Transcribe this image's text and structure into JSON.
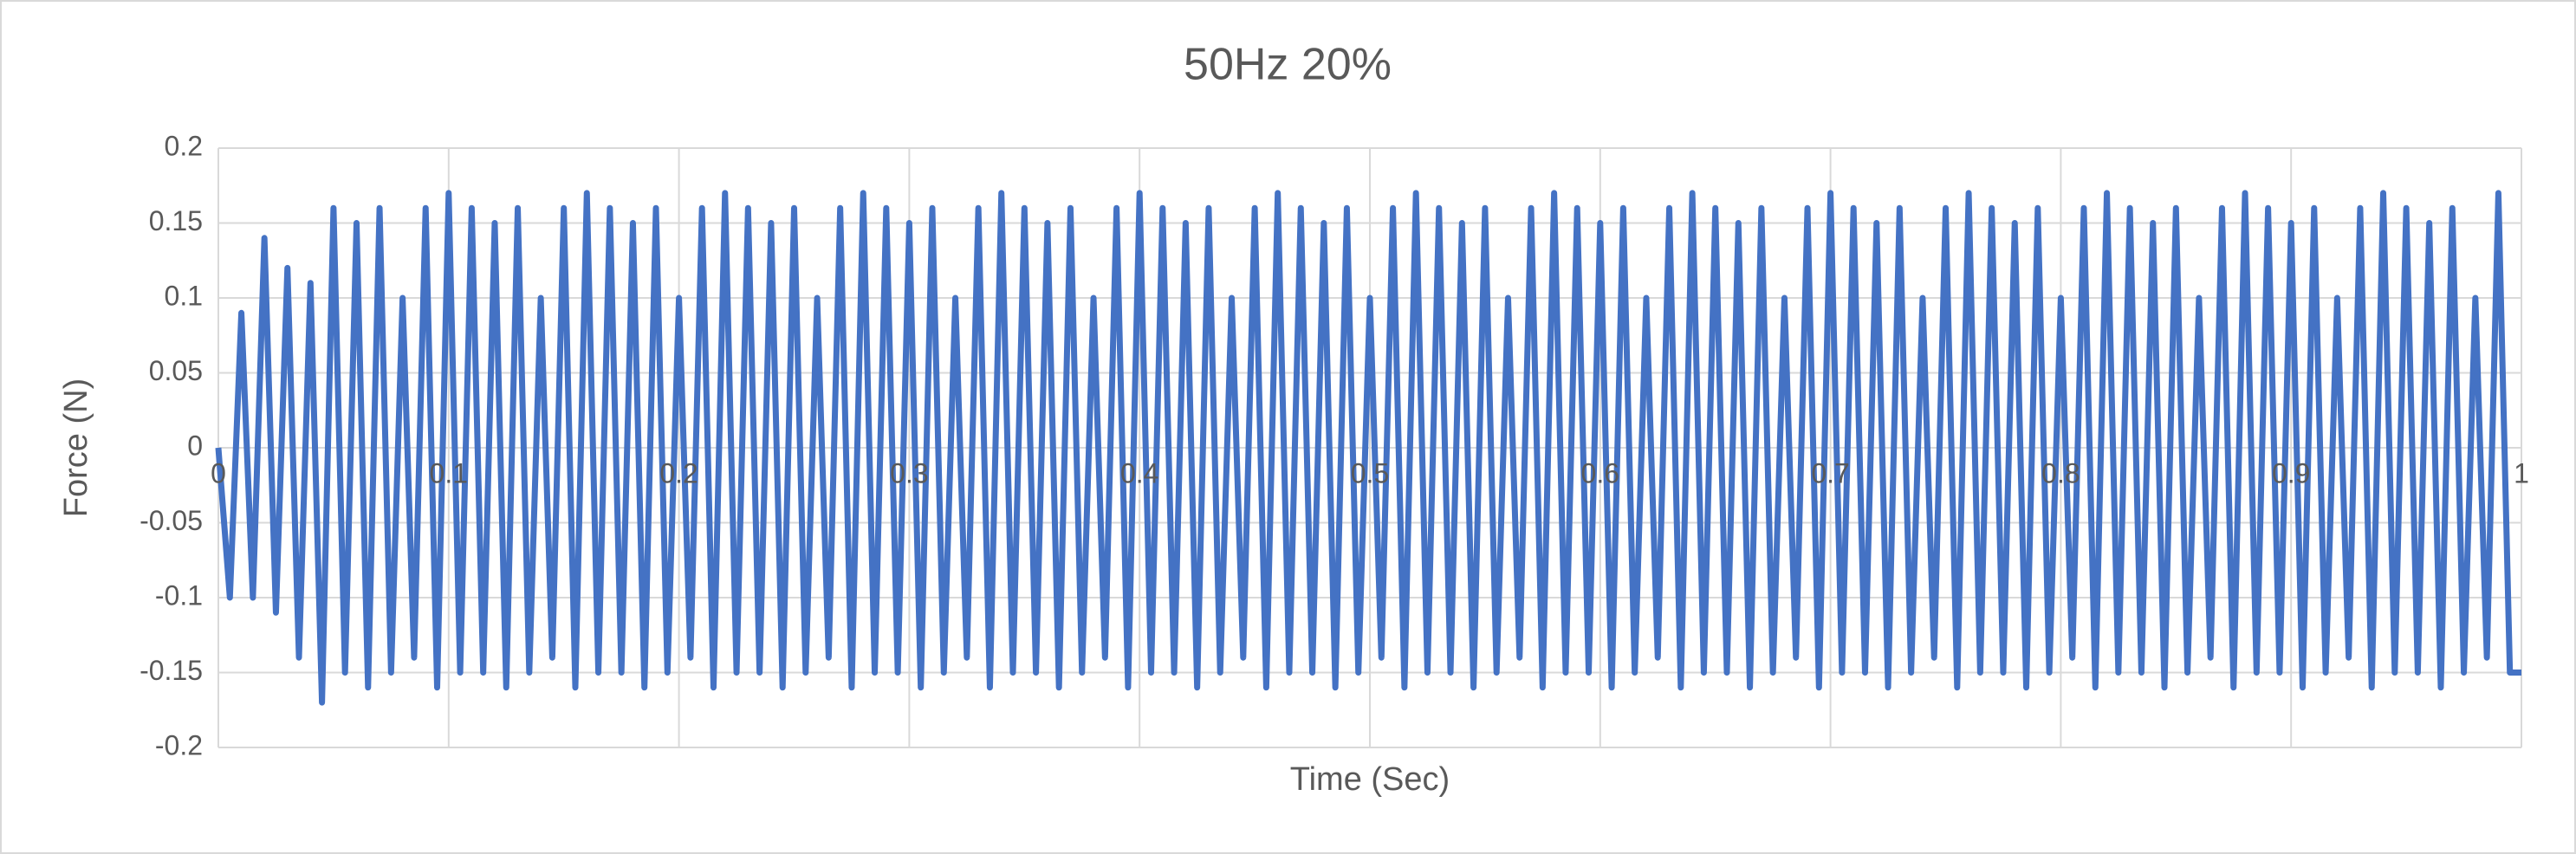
{
  "chart_data": {
    "type": "line",
    "title": "50Hz 20%",
    "x_label": "Time (Sec)",
    "y_label": "Force (N)",
    "x": [
      0,
      0.005,
      0.01,
      0.015,
      0.02,
      0.025,
      0.03,
      0.035,
      0.04,
      0.045,
      0.05,
      0.055,
      0.06,
      0.065,
      0.07,
      0.075,
      0.08,
      0.085,
      0.09,
      0.095,
      0.1,
      0.105,
      0.11,
      0.115,
      0.12,
      0.125,
      0.13,
      0.135,
      0.14,
      0.145,
      0.15,
      0.155,
      0.16,
      0.165,
      0.17,
      0.175,
      0.18,
      0.185,
      0.19,
      0.195,
      0.2,
      0.205,
      0.21,
      0.215,
      0.22,
      0.225,
      0.23,
      0.235,
      0.24,
      0.245,
      0.25,
      0.255,
      0.26,
      0.265,
      0.27,
      0.275,
      0.28,
      0.285,
      0.29,
      0.295,
      0.3,
      0.305,
      0.31,
      0.315,
      0.32,
      0.325,
      0.33,
      0.335,
      0.34,
      0.345,
      0.35,
      0.355,
      0.36,
      0.365,
      0.37,
      0.375,
      0.38,
      0.385,
      0.39,
      0.395,
      0.4,
      0.405,
      0.41,
      0.415,
      0.42,
      0.425,
      0.43,
      0.435,
      0.44,
      0.445,
      0.45,
      0.455,
      0.46,
      0.465,
      0.47,
      0.475,
      0.48,
      0.485,
      0.49,
      0.495,
      0.5,
      0.505,
      0.51,
      0.515,
      0.52,
      0.525,
      0.53,
      0.535,
      0.54,
      0.545,
      0.55,
      0.555,
      0.56,
      0.565,
      0.57,
      0.575,
      0.58,
      0.585,
      0.59,
      0.595,
      0.6,
      0.605,
      0.61,
      0.615,
      0.62,
      0.625,
      0.63,
      0.635,
      0.64,
      0.645,
      0.65,
      0.655,
      0.66,
      0.665,
      0.67,
      0.675,
      0.68,
      0.685,
      0.69,
      0.695,
      0.7,
      0.705,
      0.71,
      0.715,
      0.72,
      0.725,
      0.73,
      0.735,
      0.74,
      0.745,
      0.75,
      0.755,
      0.76,
      0.765,
      0.77,
      0.775,
      0.78,
      0.785,
      0.79,
      0.795,
      0.8,
      0.805,
      0.81,
      0.815,
      0.82,
      0.825,
      0.83,
      0.835,
      0.84,
      0.845,
      0.85,
      0.855,
      0.86,
      0.865,
      0.87,
      0.875,
      0.88,
      0.885,
      0.89,
      0.895,
      0.9,
      0.905,
      0.91,
      0.915,
      0.92,
      0.925,
      0.93,
      0.935,
      0.94,
      0.945,
      0.95,
      0.955,
      0.96,
      0.965,
      0.97,
      0.975,
      0.98,
      0.985,
      0.99,
      0.995,
      1
    ],
    "series": [
      {
        "name": "Force",
        "color": "#4472c4",
        "values": [
          0,
          -0.1,
          0.09,
          -0.1,
          0.14,
          -0.11,
          0.12,
          -0.14,
          0.11,
          -0.17,
          0.16,
          -0.15,
          0.15,
          -0.16,
          0.16,
          -0.15,
          0.1,
          -0.14,
          0.16,
          -0.16,
          0.17,
          -0.15,
          0.16,
          -0.15,
          0.15,
          -0.16,
          0.16,
          -0.15,
          0.1,
          -0.14,
          0.16,
          -0.16,
          0.17,
          -0.15,
          0.16,
          -0.15,
          0.15,
          -0.16,
          0.16,
          -0.15,
          0.1,
          -0.14,
          0.16,
          -0.16,
          0.17,
          -0.15,
          0.16,
          -0.15,
          0.15,
          -0.16,
          0.16,
          -0.15,
          0.1,
          -0.14,
          0.16,
          -0.16,
          0.17,
          -0.15,
          0.16,
          -0.15,
          0.15,
          -0.16,
          0.16,
          -0.15,
          0.1,
          -0.14,
          0.16,
          -0.16,
          0.17,
          -0.15,
          0.16,
          -0.15,
          0.15,
          -0.16,
          0.16,
          -0.15,
          0.1,
          -0.14,
          0.16,
          -0.16,
          0.17,
          -0.15,
          0.16,
          -0.15,
          0.15,
          -0.16,
          0.16,
          -0.15,
          0.1,
          -0.14,
          0.16,
          -0.16,
          0.17,
          -0.15,
          0.16,
          -0.15,
          0.15,
          -0.16,
          0.16,
          -0.15,
          0.1,
          -0.14,
          0.16,
          -0.16,
          0.17,
          -0.15,
          0.16,
          -0.15,
          0.15,
          -0.16,
          0.16,
          -0.15,
          0.1,
          -0.14,
          0.16,
          -0.16,
          0.17,
          -0.15,
          0.16,
          -0.15,
          0.15,
          -0.16,
          0.16,
          -0.15,
          0.1,
          -0.14,
          0.16,
          -0.16,
          0.17,
          -0.15,
          0.16,
          -0.15,
          0.15,
          -0.16,
          0.16,
          -0.15,
          0.1,
          -0.14,
          0.16,
          -0.16,
          0.17,
          -0.15,
          0.16,
          -0.15,
          0.15,
          -0.16,
          0.16,
          -0.15,
          0.1,
          -0.14,
          0.16,
          -0.16,
          0.17,
          -0.15,
          0.16,
          -0.15,
          0.15,
          -0.16,
          0.16,
          -0.15,
          0.1,
          -0.14,
          0.16,
          -0.16,
          0.17,
          -0.15,
          0.16,
          -0.15,
          0.15,
          -0.16,
          0.16,
          -0.15,
          0.1,
          -0.14,
          0.16,
          -0.16,
          0.17,
          -0.15,
          0.16,
          -0.15,
          0.15,
          -0.16,
          0.16,
          -0.15,
          0.1,
          -0.14,
          0.16,
          -0.16,
          0.17,
          -0.15,
          0.16,
          -0.15,
          0.15,
          -0.16,
          0.16,
          -0.15,
          0.1,
          -0.14,
          0.17,
          -0.15,
          -0.15
        ]
      }
    ],
    "xlim": [
      0,
      1
    ],
    "xticks": [
      0,
      0.1,
      0.2,
      0.3,
      0.4,
      0.5,
      0.6,
      0.7,
      0.8,
      0.9,
      1
    ],
    "ylim": [
      -0.2,
      0.2
    ],
    "yticks": [
      0.2,
      0.15,
      0.1,
      0.05,
      0,
      -0.05,
      -0.1,
      -0.15,
      -0.2
    ],
    "grid": true
  }
}
